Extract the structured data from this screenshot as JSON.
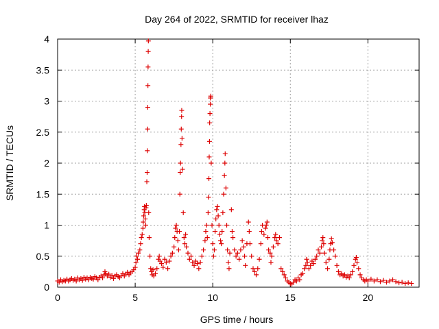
{
  "chart_data": {
    "type": "scatter",
    "title": "Day 264 of 2022, SRMTID for receiver lhaz",
    "xlabel": "GPS time / hours",
    "ylabel": "SRMTID / TECUs",
    "xlim": [
      0,
      23.3
    ],
    "ylim": [
      0,
      4
    ],
    "x_ticks": [
      0,
      5,
      10,
      15,
      20
    ],
    "x_tick_labels": [
      "0",
      "5",
      "10",
      "15",
      "20"
    ],
    "y_ticks": [
      0,
      0.5,
      1,
      1.5,
      2,
      2.5,
      3,
      3.5,
      4
    ],
    "y_tick_labels": [
      "0",
      "0.5",
      "1",
      "1.5",
      "2",
      "2.5",
      "3",
      "3.5",
      "4"
    ],
    "grid": true,
    "marker": "plus",
    "color": "#dd0000",
    "series": [
      {
        "name": "SRMTID",
        "points": [
          [
            0.0,
            0.1
          ],
          [
            0.1,
            0.08
          ],
          [
            0.2,
            0.12
          ],
          [
            0.3,
            0.09
          ],
          [
            0.4,
            0.11
          ],
          [
            0.5,
            0.1
          ],
          [
            0.6,
            0.13
          ],
          [
            0.7,
            0.1
          ],
          [
            0.8,
            0.12
          ],
          [
            0.9,
            0.14
          ],
          [
            1.0,
            0.11
          ],
          [
            1.1,
            0.13
          ],
          [
            1.2,
            0.1
          ],
          [
            1.3,
            0.15
          ],
          [
            1.4,
            0.12
          ],
          [
            1.5,
            0.14
          ],
          [
            1.6,
            0.11
          ],
          [
            1.7,
            0.16
          ],
          [
            1.8,
            0.13
          ],
          [
            1.9,
            0.15
          ],
          [
            2.0,
            0.12
          ],
          [
            2.1,
            0.16
          ],
          [
            2.2,
            0.14
          ],
          [
            2.3,
            0.13
          ],
          [
            2.4,
            0.17
          ],
          [
            2.5,
            0.15
          ],
          [
            2.6,
            0.12
          ],
          [
            2.7,
            0.16
          ],
          [
            2.8,
            0.18
          ],
          [
            2.9,
            0.15
          ],
          [
            3.0,
            0.2
          ],
          [
            3.05,
            0.25
          ],
          [
            3.1,
            0.22
          ],
          [
            3.2,
            0.18
          ],
          [
            3.3,
            0.21
          ],
          [
            3.4,
            0.16
          ],
          [
            3.5,
            0.19
          ],
          [
            3.6,
            0.14
          ],
          [
            3.7,
            0.18
          ],
          [
            3.8,
            0.2
          ],
          [
            3.9,
            0.17
          ],
          [
            4.0,
            0.15
          ],
          [
            4.1,
            0.19
          ],
          [
            4.2,
            0.22
          ],
          [
            4.3,
            0.18
          ],
          [
            4.4,
            0.21
          ],
          [
            4.5,
            0.24
          ],
          [
            4.6,
            0.2
          ],
          [
            4.7,
            0.23
          ],
          [
            4.8,
            0.25
          ],
          [
            4.9,
            0.28
          ],
          [
            5.0,
            0.32
          ],
          [
            5.05,
            0.4
          ],
          [
            5.1,
            0.5
          ],
          [
            5.15,
            0.45
          ],
          [
            5.2,
            0.55
          ],
          [
            5.3,
            0.6
          ],
          [
            5.35,
            0.7
          ],
          [
            5.4,
            0.8
          ],
          [
            5.45,
            0.85
          ],
          [
            5.5,
            0.95
          ],
          [
            5.52,
            1.05
          ],
          [
            5.55,
            1.15
          ],
          [
            5.58,
            1.25
          ],
          [
            5.6,
            1.3
          ],
          [
            5.62,
            1.2
          ],
          [
            5.65,
            1.1
          ],
          [
            5.68,
            1.0
          ],
          [
            5.7,
            1.28
          ],
          [
            5.72,
            1.32
          ],
          [
            5.75,
            1.7
          ],
          [
            5.77,
            1.85
          ],
          [
            5.78,
            2.2
          ],
          [
            5.8,
            2.55
          ],
          [
            5.81,
            2.9
          ],
          [
            5.82,
            3.25
          ],
          [
            5.83,
            3.55
          ],
          [
            5.84,
            3.8
          ],
          [
            5.85,
            3.97
          ],
          [
            5.87,
            1.2
          ],
          [
            5.9,
            0.8
          ],
          [
            5.95,
            0.5
          ],
          [
            6.0,
            0.3
          ],
          [
            6.05,
            0.25
          ],
          [
            6.1,
            0.2
          ],
          [
            6.15,
            0.28
          ],
          [
            6.2,
            0.18
          ],
          [
            6.3,
            0.22
          ],
          [
            6.4,
            0.3
          ],
          [
            6.5,
            0.45
          ],
          [
            6.55,
            0.5
          ],
          [
            6.6,
            0.42
          ],
          [
            6.7,
            0.38
          ],
          [
            6.8,
            0.32
          ],
          [
            6.9,
            0.45
          ],
          [
            7.0,
            0.4
          ],
          [
            7.1,
            0.3
          ],
          [
            7.2,
            0.42
          ],
          [
            7.3,
            0.5
          ],
          [
            7.4,
            0.55
          ],
          [
            7.5,
            0.65
          ],
          [
            7.55,
            0.8
          ],
          [
            7.6,
            0.95
          ],
          [
            7.65,
            1.0
          ],
          [
            7.7,
            0.9
          ],
          [
            7.75,
            0.75
          ],
          [
            7.8,
            0.6
          ],
          [
            7.85,
            0.9
          ],
          [
            7.88,
            1.5
          ],
          [
            7.9,
            1.85
          ],
          [
            7.92,
            2.0
          ],
          [
            7.95,
            2.3
          ],
          [
            7.97,
            2.55
          ],
          [
            7.99,
            2.75
          ],
          [
            8.0,
            2.85
          ],
          [
            8.02,
            2.4
          ],
          [
            8.05,
            1.9
          ],
          [
            8.1,
            1.2
          ],
          [
            8.15,
            0.8
          ],
          [
            8.2,
            0.7
          ],
          [
            8.25,
            0.85
          ],
          [
            8.3,
            0.65
          ],
          [
            8.4,
            0.55
          ],
          [
            8.5,
            0.45
          ],
          [
            8.6,
            0.5
          ],
          [
            8.7,
            0.4
          ],
          [
            8.8,
            0.35
          ],
          [
            8.9,
            0.42
          ],
          [
            9.0,
            0.38
          ],
          [
            9.1,
            0.3
          ],
          [
            9.2,
            0.4
          ],
          [
            9.3,
            0.5
          ],
          [
            9.4,
            0.6
          ],
          [
            9.5,
            0.75
          ],
          [
            9.55,
            0.9
          ],
          [
            9.6,
            1.0
          ],
          [
            9.65,
            0.8
          ],
          [
            9.7,
            1.2
          ],
          [
            9.72,
            1.45
          ],
          [
            9.75,
            1.75
          ],
          [
            9.77,
            2.1
          ],
          [
            9.79,
            2.35
          ],
          [
            9.8,
            2.65
          ],
          [
            9.82,
            2.8
          ],
          [
            9.84,
            2.95
          ],
          [
            9.85,
            3.05
          ],
          [
            9.87,
            3.08
          ],
          [
            9.9,
            2.0
          ],
          [
            9.95,
            1.0
          ],
          [
            10.0,
            0.7
          ],
          [
            10.05,
            0.5
          ],
          [
            10.1,
            0.6
          ],
          [
            10.15,
            0.9
          ],
          [
            10.2,
            1.1
          ],
          [
            10.25,
            1.25
          ],
          [
            10.3,
            1.3
          ],
          [
            10.35,
            1.15
          ],
          [
            10.4,
            1.0
          ],
          [
            10.45,
            0.85
          ],
          [
            10.5,
            0.75
          ],
          [
            10.55,
            0.7
          ],
          [
            10.6,
            0.9
          ],
          [
            10.65,
            1.2
          ],
          [
            10.7,
            1.5
          ],
          [
            10.75,
            1.8
          ],
          [
            10.78,
            2.0
          ],
          [
            10.8,
            2.15
          ],
          [
            10.85,
            1.6
          ],
          [
            10.9,
            1.0
          ],
          [
            10.95,
            0.6
          ],
          [
            11.0,
            0.4
          ],
          [
            11.05,
            0.3
          ],
          [
            11.1,
            0.55
          ],
          [
            11.2,
            1.25
          ],
          [
            11.25,
            0.9
          ],
          [
            11.3,
            0.8
          ],
          [
            11.4,
            0.6
          ],
          [
            11.5,
            0.5
          ],
          [
            11.6,
            0.55
          ],
          [
            11.7,
            0.45
          ],
          [
            11.8,
            0.6
          ],
          [
            11.9,
            0.75
          ],
          [
            12.0,
            0.65
          ],
          [
            12.05,
            0.5
          ],
          [
            12.1,
            0.35
          ],
          [
            12.2,
            0.7
          ],
          [
            12.3,
            1.05
          ],
          [
            12.35,
            0.9
          ],
          [
            12.4,
            0.7
          ],
          [
            12.5,
            0.5
          ],
          [
            12.6,
            0.3
          ],
          [
            12.7,
            0.25
          ],
          [
            12.8,
            0.2
          ],
          [
            12.9,
            0.3
          ],
          [
            13.0,
            0.45
          ],
          [
            13.1,
            0.7
          ],
          [
            13.15,
            0.9
          ],
          [
            13.2,
            1.0
          ],
          [
            13.3,
            0.85
          ],
          [
            13.4,
            0.95
          ],
          [
            13.45,
            1.0
          ],
          [
            13.5,
            1.05
          ],
          [
            13.55,
            0.8
          ],
          [
            13.6,
            0.6
          ],
          [
            13.7,
            0.55
          ],
          [
            13.75,
            0.4
          ],
          [
            13.8,
            0.5
          ],
          [
            13.9,
            0.65
          ],
          [
            14.0,
            0.8
          ],
          [
            14.05,
            0.85
          ],
          [
            14.1,
            0.75
          ],
          [
            14.2,
            0.7
          ],
          [
            14.3,
            0.8
          ],
          [
            14.4,
            0.3
          ],
          [
            14.5,
            0.25
          ],
          [
            14.6,
            0.2
          ],
          [
            14.7,
            0.15
          ],
          [
            14.8,
            0.1
          ],
          [
            14.9,
            0.08
          ],
          [
            15.0,
            0.06
          ],
          [
            15.1,
            0.05
          ],
          [
            15.2,
            0.08
          ],
          [
            15.3,
            0.12
          ],
          [
            15.4,
            0.1
          ],
          [
            15.5,
            0.15
          ],
          [
            15.6,
            0.12
          ],
          [
            15.7,
            0.2
          ],
          [
            15.8,
            0.22
          ],
          [
            15.9,
            0.3
          ],
          [
            16.0,
            0.35
          ],
          [
            16.05,
            0.45
          ],
          [
            16.1,
            0.4
          ],
          [
            16.2,
            0.3
          ],
          [
            16.3,
            0.35
          ],
          [
            16.4,
            0.42
          ],
          [
            16.5,
            0.38
          ],
          [
            16.6,
            0.45
          ],
          [
            16.7,
            0.5
          ],
          [
            16.8,
            0.6
          ],
          [
            16.9,
            0.55
          ],
          [
            17.0,
            0.65
          ],
          [
            17.05,
            0.75
          ],
          [
            17.1,
            0.8
          ],
          [
            17.15,
            0.7
          ],
          [
            17.2,
            0.55
          ],
          [
            17.3,
            0.4
          ],
          [
            17.4,
            0.3
          ],
          [
            17.5,
            0.45
          ],
          [
            17.55,
            0.6
          ],
          [
            17.6,
            0.7
          ],
          [
            17.65,
            0.78
          ],
          [
            17.7,
            0.72
          ],
          [
            17.8,
            0.6
          ],
          [
            17.9,
            0.5
          ],
          [
            18.0,
            0.35
          ],
          [
            18.1,
            0.25
          ],
          [
            18.2,
            0.2
          ],
          [
            18.3,
            0.22
          ],
          [
            18.4,
            0.18
          ],
          [
            18.5,
            0.2
          ],
          [
            18.6,
            0.16
          ],
          [
            18.7,
            0.18
          ],
          [
            18.8,
            0.15
          ],
          [
            18.9,
            0.2
          ],
          [
            19.0,
            0.25
          ],
          [
            19.1,
            0.35
          ],
          [
            19.2,
            0.45
          ],
          [
            19.25,
            0.48
          ],
          [
            19.3,
            0.4
          ],
          [
            19.4,
            0.3
          ],
          [
            19.5,
            0.2
          ],
          [
            19.6,
            0.15
          ],
          [
            19.7,
            0.12
          ],
          [
            19.8,
            0.1
          ],
          [
            19.9,
            0.12
          ],
          [
            20.0,
            0.1
          ],
          [
            20.2,
            0.13
          ],
          [
            20.4,
            0.1
          ],
          [
            20.6,
            0.12
          ],
          [
            20.8,
            0.09
          ],
          [
            21.0,
            0.11
          ],
          [
            21.2,
            0.08
          ],
          [
            21.4,
            0.1
          ],
          [
            21.6,
            0.12
          ],
          [
            21.8,
            0.09
          ],
          [
            22.0,
            0.07
          ],
          [
            22.2,
            0.08
          ],
          [
            22.4,
            0.06
          ],
          [
            22.6,
            0.07
          ],
          [
            22.8,
            0.06
          ]
        ]
      }
    ]
  }
}
